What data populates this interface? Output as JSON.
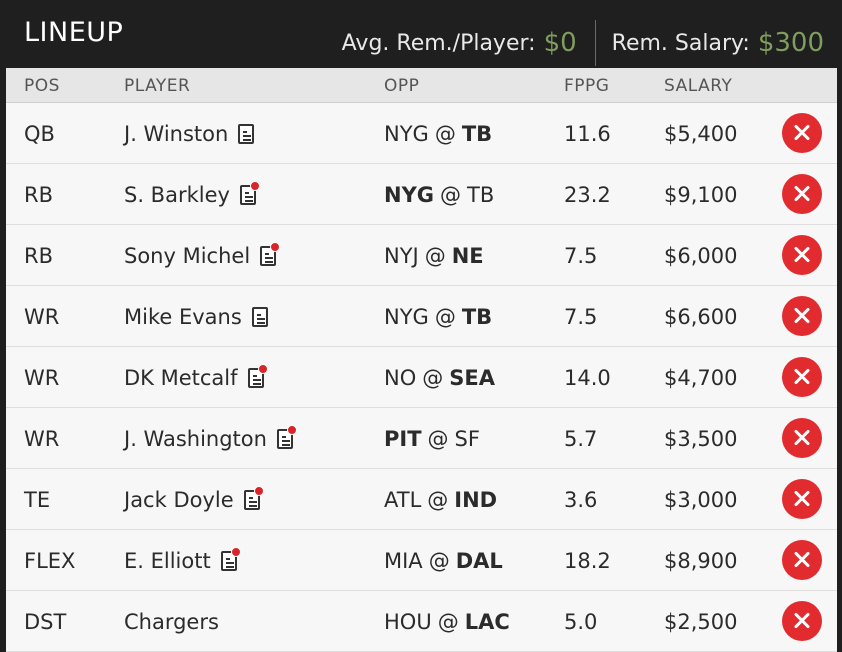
{
  "header": {
    "title": "LINEUP",
    "avg_label": "Avg. Rem./Player:",
    "avg_value": "$0",
    "rem_label": "Rem. Salary:",
    "rem_value": "$300"
  },
  "columns": {
    "pos": "POS",
    "player": "PLAYER",
    "opp": "OPP",
    "fppg": "FPPG",
    "salary": "SALARY"
  },
  "rows": [
    {
      "pos": "QB",
      "player": "J. Winston",
      "news": true,
      "news_alert": false,
      "opp_team": "NYG",
      "at": "@",
      "opp_home": "TB",
      "bold": "home",
      "fppg": "11.6",
      "salary": "$5,400"
    },
    {
      "pos": "RB",
      "player": "S. Barkley",
      "news": true,
      "news_alert": true,
      "opp_team": "NYG",
      "at": "@",
      "opp_home": "TB",
      "bold": "away",
      "fppg": "23.2",
      "salary": "$9,100"
    },
    {
      "pos": "RB",
      "player": "Sony Michel",
      "news": true,
      "news_alert": true,
      "opp_team": "NYJ",
      "at": "@",
      "opp_home": "NE",
      "bold": "home",
      "fppg": "7.5",
      "salary": "$6,000"
    },
    {
      "pos": "WR",
      "player": "Mike Evans",
      "news": true,
      "news_alert": false,
      "opp_team": "NYG",
      "at": "@",
      "opp_home": "TB",
      "bold": "home",
      "fppg": "7.5",
      "salary": "$6,600"
    },
    {
      "pos": "WR",
      "player": "DK Metcalf",
      "news": true,
      "news_alert": true,
      "opp_team": "NO",
      "at": "@",
      "opp_home": "SEA",
      "bold": "home",
      "fppg": "14.0",
      "salary": "$4,700"
    },
    {
      "pos": "WR",
      "player": "J. Washington",
      "news": true,
      "news_alert": true,
      "opp_team": "PIT",
      "at": "@",
      "opp_home": "SF",
      "bold": "away",
      "fppg": "5.7",
      "salary": "$3,500"
    },
    {
      "pos": "TE",
      "player": "Jack Doyle",
      "news": true,
      "news_alert": true,
      "opp_team": "ATL",
      "at": "@",
      "opp_home": "IND",
      "bold": "home",
      "fppg": "3.6",
      "salary": "$3,000"
    },
    {
      "pos": "FLEX",
      "player": "E. Elliott",
      "news": true,
      "news_alert": true,
      "opp_team": "MIA",
      "at": "@",
      "opp_home": "DAL",
      "bold": "home",
      "fppg": "18.2",
      "salary": "$8,900"
    },
    {
      "pos": "DST",
      "player": "Chargers",
      "news": false,
      "news_alert": false,
      "opp_team": "HOU",
      "at": "@",
      "opp_home": "LAC",
      "bold": "home",
      "fppg": "5.0",
      "salary": "$2,500"
    }
  ],
  "icons": {
    "news": "player-news-icon",
    "alert": "news-alert-dot-icon",
    "remove": "remove-player-icon"
  },
  "colors": {
    "header_bg": "#1f1f1f",
    "money": "#7f9d5d",
    "remove": "#e12b2f",
    "alert": "#d9252a"
  }
}
